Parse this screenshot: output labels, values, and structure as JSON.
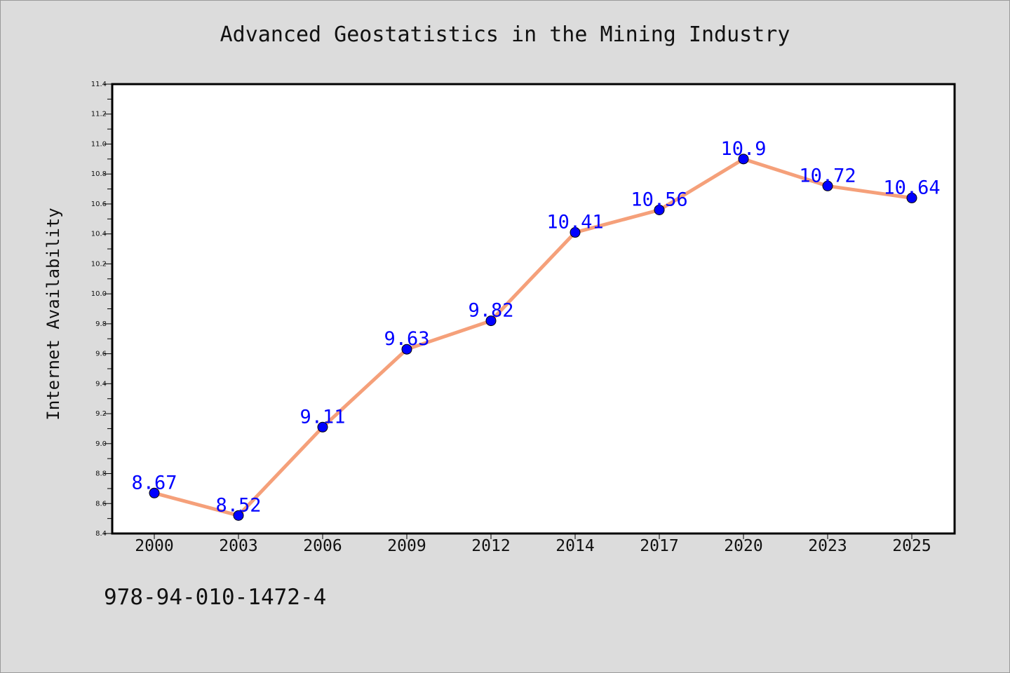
{
  "chart_data": {
    "type": "line",
    "title": "Advanced Geostatistics in the Mining Industry",
    "xlabel": "",
    "ylabel": "Internet Availability",
    "categories": [
      "2000",
      "2003",
      "2006",
      "2009",
      "2012",
      "2014",
      "2017",
      "2020",
      "2023",
      "2025"
    ],
    "series": [
      {
        "values": [
          8.67,
          8.52,
          9.11,
          9.63,
          9.82,
          10.41,
          10.56,
          10.9,
          10.72,
          10.64
        ]
      }
    ],
    "data_labels": [
      "8.67",
      "8.52",
      "9.11",
      "9.63",
      "9.82",
      "10.41",
      "10.56",
      "10.9",
      "10.72",
      "10.64"
    ],
    "ylim": [
      8.4,
      11.4
    ],
    "yticks": [
      "8.4",
      "8.6",
      "8.8",
      "9.0",
      "9.2",
      "9.4",
      "9.6",
      "9.8",
      "10.0",
      "10.2",
      "10.4",
      "10.6",
      "10.8",
      "11.0",
      "11.2",
      "11.4"
    ],
    "grid": false,
    "legend": "none",
    "colors": {
      "line": "#f5a07a",
      "marker": "#0000ff",
      "label": "#0000ff",
      "background": "#dcdcdc",
      "plot_background": "#ffffff"
    }
  },
  "footer": {
    "code": "978-94-010-1472-4"
  }
}
